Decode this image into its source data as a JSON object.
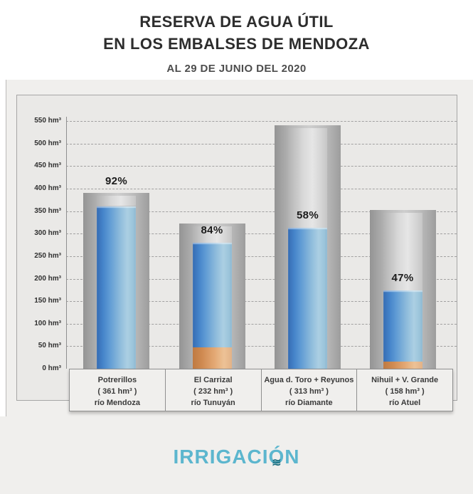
{
  "header": {
    "title_line1": "RESERVA DE AGUA ÚTIL",
    "title_line2": "EN LOS EMBALSES DE MENDOZA",
    "subtitle": "AL 29 DE JUNIO DEL 2020"
  },
  "footer": {
    "logo_text": "IRRIGACIÓN",
    "logo_part1": "IRRIGACI",
    "logo_o": "Ó",
    "logo_part2": "N",
    "wave_glyph": "≋",
    "logo_color": "#5cb6ce",
    "wave_color": "#1e6f80"
  },
  "chart_data": {
    "type": "bar",
    "title": "Reserva de agua útil en los embalses de Mendoza",
    "subtitle": "Al 29 de junio del 2020",
    "unit": "hm³",
    "ylabel": "hm³",
    "ylim": [
      0,
      550
    ],
    "ytick_step": 50,
    "yticks": [
      "550 hm³",
      "500 hm³",
      "450 hm³",
      "400 hm³",
      "350 hm³",
      "300 hm³",
      "250 hm³",
      "200 hm³",
      "150 hm³",
      "100 hm³",
      "50 hm³",
      "0 hm³"
    ],
    "grid": "horizontal dashed",
    "legend": "none",
    "categories": [
      "Potrerillos",
      "El Carrizal",
      "Agua d. Toro + Reyunos",
      "Nihuil + V. Grande"
    ],
    "reservoirs": [
      {
        "name": "Potrerillos",
        "volume_label": "( 361 hm³ )",
        "river": "río Mendoza",
        "percent": 92,
        "percent_label": "92%",
        "useful_reserve_hm3": 361,
        "fill_top_hm3": 361,
        "dead_volume_hm3": 0,
        "bar_total_hm3": 390
      },
      {
        "name": "El Carrizal",
        "volume_label": "( 232 hm³ )",
        "river": "río Tunuyán",
        "percent": 84,
        "percent_label": "84%",
        "useful_reserve_hm3": 232,
        "fill_top_hm3": 280,
        "dead_volume_hm3": 47,
        "bar_total_hm3": 322
      },
      {
        "name": "Agua d. Toro + Reyunos",
        "volume_label": "( 313 hm³ )",
        "river": "río Diamante",
        "percent": 58,
        "percent_label": "58%",
        "useful_reserve_hm3": 313,
        "fill_top_hm3": 313,
        "dead_volume_hm3": 0,
        "bar_total_hm3": 540
      },
      {
        "name": "Nihuil + V. Grande",
        "volume_label": "( 158 hm³ )",
        "river": "río Atuel",
        "percent": 47,
        "percent_label": "47%",
        "useful_reserve_hm3": 158,
        "fill_top_hm3": 174,
        "dead_volume_hm3": 16,
        "bar_total_hm3": 353
      }
    ],
    "colors": {
      "water_fill_blue": "#4584ca",
      "water_fill_light": "#a9cde2",
      "dead_volume_orange": "#d99a62",
      "capacity_gray": "#bdbdbd",
      "grid_gray": "#8f8f8f",
      "panel_bg": "#eae9e7"
    }
  }
}
